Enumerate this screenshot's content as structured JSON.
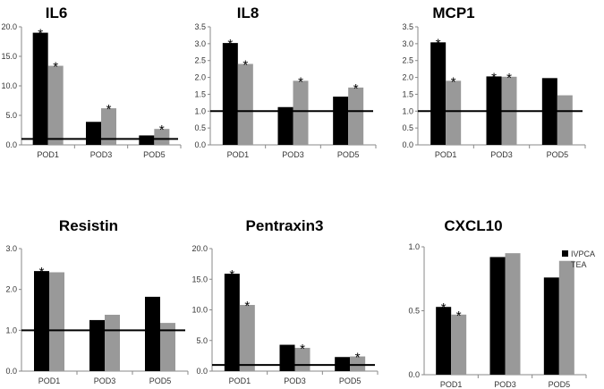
{
  "legend": [
    {
      "label": "IVPCA",
      "color": "#000000"
    },
    {
      "label": "TEA",
      "color": "#999999"
    }
  ],
  "chart_data": [
    {
      "type": "bar",
      "title": "IL6",
      "categories": [
        "POD1",
        "POD3",
        "POD5"
      ],
      "series": [
        {
          "values": [
            19.0,
            3.9,
            1.6
          ],
          "stars": [
            true,
            false,
            false
          ]
        },
        {
          "values": [
            13.4,
            6.2,
            2.7
          ],
          "stars": [
            true,
            true,
            true
          ]
        }
      ],
      "ylim": [
        0,
        20
      ],
      "yticks": [
        "0.0",
        "5.0",
        "10.0",
        "15.0",
        "20.0"
      ],
      "reference_line": 1.0
    },
    {
      "type": "bar",
      "title": "IL8",
      "categories": [
        "POD1",
        "POD3",
        "POD5"
      ],
      "series": [
        {
          "values": [
            3.02,
            1.12,
            1.43
          ],
          "stars": [
            true,
            false,
            false
          ]
        },
        {
          "values": [
            2.4,
            1.9,
            1.7
          ],
          "stars": [
            true,
            true,
            true
          ]
        }
      ],
      "ylim": [
        0,
        3.5
      ],
      "yticks": [
        "0.0",
        "0.5",
        "1.0",
        "1.5",
        "2.0",
        "2.5",
        "3.0",
        "3.5"
      ],
      "reference_line": 1.0
    },
    {
      "type": "bar",
      "title": "MCP1",
      "categories": [
        "POD1",
        "POD3",
        "POD5"
      ],
      "series": [
        {
          "values": [
            3.04,
            2.03,
            1.98
          ],
          "stars": [
            true,
            true,
            false
          ]
        },
        {
          "values": [
            1.9,
            2.02,
            1.47
          ],
          "stars": [
            true,
            true,
            false
          ]
        }
      ],
      "ylim": [
        0,
        3.5
      ],
      "yticks": [
        "0.0",
        "0.5",
        "1.0",
        "1.5",
        "2.0",
        "2.5",
        "3.0",
        "3.5"
      ],
      "reference_line": 1.0
    },
    {
      "type": "bar",
      "title": "Resistin",
      "categories": [
        "POD1",
        "POD3",
        "POD5"
      ],
      "series": [
        {
          "values": [
            2.45,
            1.25,
            1.82
          ],
          "stars": [
            true,
            false,
            false
          ]
        },
        {
          "values": [
            2.42,
            1.38,
            1.18
          ],
          "stars": [
            false,
            false,
            false
          ]
        }
      ],
      "ylim": [
        0,
        3
      ],
      "yticks": [
        "0.0",
        "1.0",
        "2.0",
        "3.0"
      ],
      "reference_line": 1.0
    },
    {
      "type": "bar",
      "title": "Pentraxin3",
      "categories": [
        "POD1",
        "POD3",
        "POD5"
      ],
      "series": [
        {
          "values": [
            15.9,
            4.3,
            2.3
          ],
          "stars": [
            true,
            false,
            false
          ]
        },
        {
          "values": [
            10.8,
            3.8,
            2.4
          ],
          "stars": [
            true,
            true,
            true
          ]
        }
      ],
      "ylim": [
        0,
        20
      ],
      "yticks": [
        "0.0",
        "5.0",
        "10.0",
        "15.0",
        "20.0"
      ],
      "reference_line": 1.0
    },
    {
      "type": "bar",
      "title": "CXCL10",
      "categories": [
        "POD1",
        "POD3",
        "POD5"
      ],
      "series": [
        {
          "values": [
            0.53,
            0.92,
            0.76
          ],
          "stars": [
            true,
            false,
            false
          ]
        },
        {
          "values": [
            0.47,
            0.95,
            0.89
          ],
          "stars": [
            true,
            false,
            false
          ]
        }
      ],
      "ylim": [
        0,
        1
      ],
      "yticks": [
        "0.0",
        "0.5",
        "1.0"
      ],
      "reference_line": null
    }
  ]
}
